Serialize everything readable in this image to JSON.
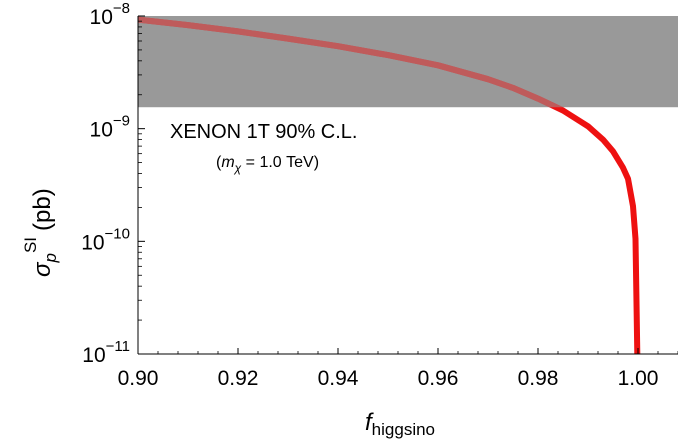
{
  "chart_data": {
    "type": "line",
    "title": "",
    "xlabel": {
      "main": "f",
      "sub": "higgsino"
    },
    "ylabel": {
      "sigma": "σ",
      "sub": "p",
      "sup": "SI",
      "unit": "(pb)"
    },
    "x_range": [
      0.9,
      1.008
    ],
    "y_range": [
      1e-11,
      1e-08
    ],
    "y_scale": "log",
    "x_ticks": [
      {
        "value": 0.9,
        "label": "0.90"
      },
      {
        "value": 0.92,
        "label": "0.92"
      },
      {
        "value": 0.94,
        "label": "0.94"
      },
      {
        "value": 0.96,
        "label": "0.96"
      },
      {
        "value": 0.98,
        "label": "0.98"
      },
      {
        "value": 1.0,
        "label": "1.00"
      }
    ],
    "y_ticks": [
      {
        "value": 1e-08,
        "base": "10",
        "exp": "−8"
      },
      {
        "value": 1e-09,
        "base": "10",
        "exp": "−9"
      },
      {
        "value": 1e-10,
        "base": "10",
        "exp": "−10"
      },
      {
        "value": 1e-11,
        "base": "10",
        "exp": "−11"
      }
    ],
    "excluded_region": {
      "y_min": 1.55e-09,
      "y_max": 1e-08,
      "color": "#999999",
      "label": "XENON 1T 90% C.L.",
      "sublabel": {
        "open": "(",
        "m": "m",
        "sub": "χ",
        "rest": " = 1.0 TeV)"
      }
    },
    "series": [
      {
        "color": "#ee1111",
        "x": [
          0.9,
          0.91,
          0.92,
          0.93,
          0.94,
          0.95,
          0.96,
          0.97,
          0.975,
          0.98,
          0.985,
          0.99,
          0.993,
          0.995,
          0.997,
          0.998,
          0.999,
          0.9995,
          0.99985
        ],
        "y": [
          9.3e-09,
          8.3e-09,
          7.3e-09,
          6.3e-09,
          5.4e-09,
          4.5e-09,
          3.65e-09,
          2.75e-09,
          2.3e-09,
          1.85e-09,
          1.45e-09,
          1.05e-09,
          8e-10,
          6.3e-10,
          4.5e-10,
          3.6e-10,
          2.05e-10,
          1.05e-10,
          1e-11
        ]
      }
    ],
    "grid": false,
    "legend": "none"
  }
}
